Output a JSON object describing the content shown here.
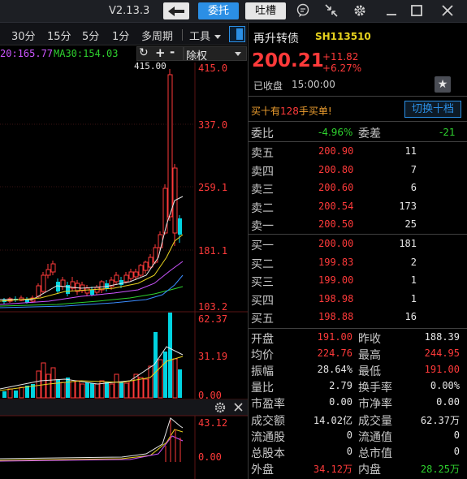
{
  "titlebar": {
    "version": "V2.13.3",
    "back_icon": "arrow-left-icon",
    "entrust_label": "委托",
    "tucao_label": "吐槽",
    "icons": [
      "chat-icon",
      "shrink-icon",
      "gear-icon",
      "maximize-icon",
      "close-icon"
    ]
  },
  "chart_toolbar": {
    "periods": [
      "30分",
      "15分",
      "5分",
      "1分"
    ],
    "multi_period": "多周期",
    "tools_label": "工具",
    "restore_label": "除权"
  },
  "ma": {
    "ma20_label": "20:165.77",
    "ma30_label": "MA30:154.03"
  },
  "chart": {
    "price_ticks": [
      "415.0",
      "337.0",
      "259.1",
      "181.1",
      "103.2"
    ],
    "high_marker": "415.00",
    "volume_ticks": [
      "62.37",
      "31.19",
      "0.00"
    ],
    "indicator_ticks": [
      "43.12",
      "0.00"
    ]
  },
  "colors": {
    "up": "#ff3a3a",
    "down": "#00d3e0",
    "ma_white": "#e6e6e6",
    "ma_yellow": "#e6d21e",
    "ma_purple": "#cc55ff",
    "ma_green": "#2ed12e",
    "blue_accent": "#2b8fe5"
  },
  "quote": {
    "name": "再升转债",
    "code": "SH113510",
    "price": "200.21",
    "change": "+11.82",
    "change_pct": "+6.27%",
    "status": "已收盘",
    "time": "15:00:00",
    "notice_prefix": "买十有",
    "notice_count": "128",
    "notice_suffix": "手买单!",
    "switch_label": "切换十档",
    "weibi_label": "委比",
    "weibi_value": "-4.96%",
    "weicha_label": "委差",
    "weicha_value": "-21"
  },
  "asks": [
    {
      "label": "卖五",
      "price": "200.90",
      "vol": "11"
    },
    {
      "label": "卖四",
      "price": "200.80",
      "vol": "7"
    },
    {
      "label": "卖三",
      "price": "200.60",
      "vol": "6"
    },
    {
      "label": "卖二",
      "price": "200.54",
      "vol": "173"
    },
    {
      "label": "卖一",
      "price": "200.50",
      "vol": "25"
    }
  ],
  "bids": [
    {
      "label": "买一",
      "price": "200.00",
      "vol": "181"
    },
    {
      "label": "买二",
      "price": "199.83",
      "vol": "2"
    },
    {
      "label": "买三",
      "price": "199.00",
      "vol": "1"
    },
    {
      "label": "买四",
      "price": "198.98",
      "vol": "1"
    },
    {
      "label": "买五",
      "price": "198.88",
      "vol": "16"
    }
  ],
  "stats": [
    {
      "l1": "开盘",
      "v1": "191.00",
      "c1": "red",
      "l2": "昨收",
      "v2": "188.39",
      "c2": "white"
    },
    {
      "l1": "均价",
      "v1": "224.76",
      "c1": "red",
      "l2": "最高",
      "v2": "244.95",
      "c2": "red"
    },
    {
      "l1": "振幅",
      "v1": "28.64%",
      "c1": "white",
      "l2": "最低",
      "v2": "191.00",
      "c2": "red"
    },
    {
      "l1": "量比",
      "v1": "2.79",
      "c1": "white",
      "l2": "换手率",
      "v2": "0.00%",
      "c2": "white"
    },
    {
      "l1": "市盈率",
      "v1": "0.00",
      "c1": "white",
      "l2": "市净率",
      "v2": "0.00",
      "c2": "white"
    },
    {
      "l1": "成交额",
      "v1": "14.02亿",
      "c1": "white",
      "l2": "成交量",
      "v2": "62.37万",
      "c2": "white"
    },
    {
      "l1": "流通股",
      "v1": "0",
      "c1": "white",
      "l2": "流通值",
      "v2": "0",
      "c2": "white"
    },
    {
      "l1": "总股本",
      "v1": "0",
      "c1": "white",
      "l2": "总市值",
      "v2": "0",
      "c2": "white"
    },
    {
      "l1": "外盘",
      "v1": "34.12万",
      "c1": "red",
      "l2": "内盘",
      "v2": "28.25万",
      "c2": "green"
    }
  ]
}
